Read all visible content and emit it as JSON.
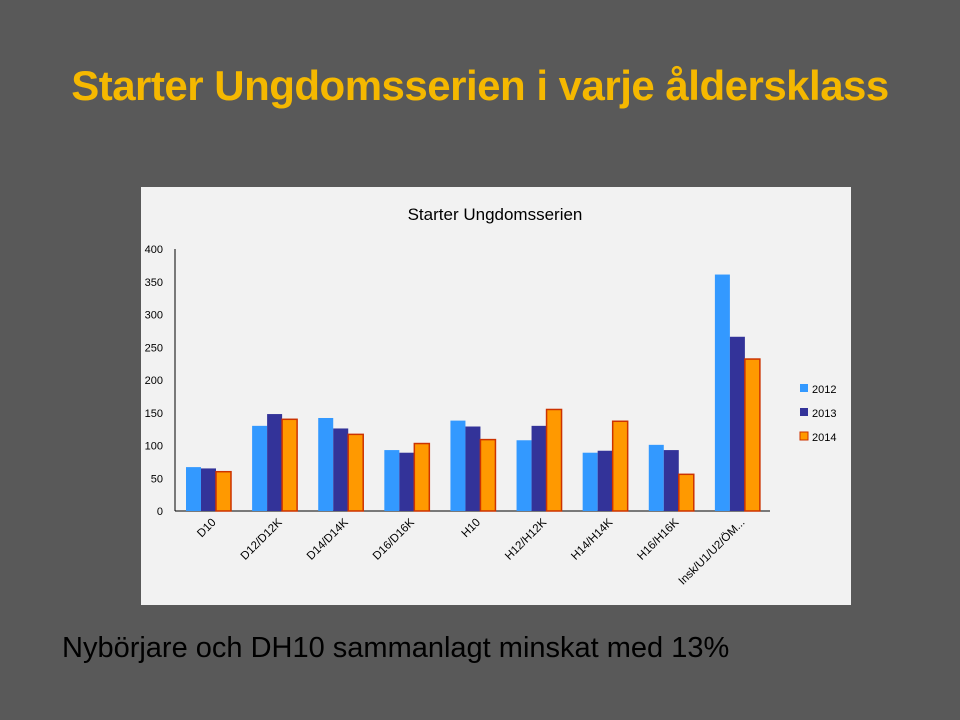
{
  "slide": {
    "title": "Starter Ungdomsserien i varje åldersklass",
    "caption": "Nybörjare och DH10 sammanlagt minskat med 13%"
  },
  "colors": {
    "background": "#595959",
    "title": "#f5b800",
    "chart_background": "#f2f2f2",
    "series_2012": "#3399ff",
    "series_2013": "#333399",
    "series_2014_fill": "#ff9900",
    "series_2014_border": "#cc3300"
  },
  "chart_data": {
    "type": "bar",
    "title": "Starter Ungdomsserien",
    "xlabel": "",
    "ylabel": "",
    "ylim": [
      0,
      400
    ],
    "yticks": [
      0,
      50,
      100,
      150,
      200,
      250,
      300,
      350,
      400
    ],
    "grid": false,
    "legend_position": "right",
    "categories": [
      "D10",
      "D12/D12K",
      "D14/D14K",
      "D16/D16K",
      "H10",
      "H12/H12K",
      "H14/H14K",
      "H16/H16K",
      "Insk/U1/U2/ÖM..."
    ],
    "series": [
      {
        "name": "2012",
        "values": [
          67,
          130,
          142,
          93,
          138,
          108,
          89,
          101,
          361
        ]
      },
      {
        "name": "2013",
        "values": [
          65,
          148,
          126,
          89,
          129,
          130,
          92,
          93,
          266
        ]
      },
      {
        "name": "2014",
        "values": [
          60,
          140,
          117,
          103,
          109,
          155,
          137,
          56,
          232
        ]
      }
    ]
  }
}
